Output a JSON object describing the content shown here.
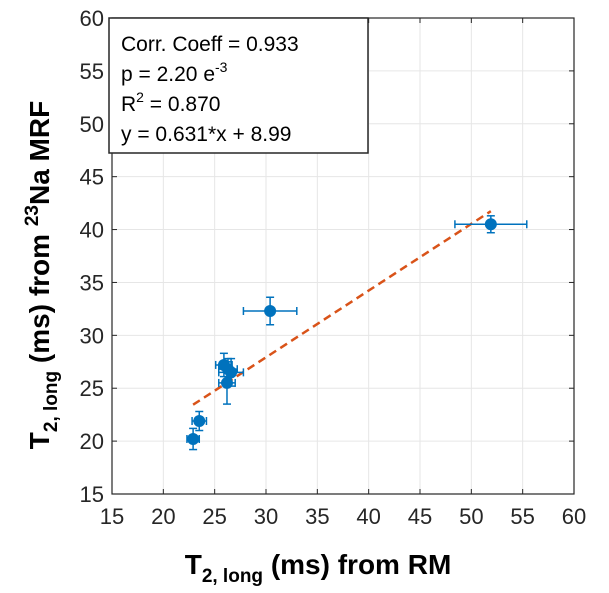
{
  "chart_data": {
    "type": "scatter",
    "xlabel": {
      "main": "T",
      "sub": "2, long",
      "rest": " (ms) from RM"
    },
    "ylabel": {
      "main": "T",
      "sub": "2, long",
      "rest1": " (ms) from ",
      "sup": "23",
      "rest2": "Na MRF"
    },
    "xlim": [
      15,
      60
    ],
    "ylim": [
      15,
      60
    ],
    "xticks": [
      "15",
      "20",
      "25",
      "30",
      "35",
      "40",
      "45",
      "50",
      "55",
      "60"
    ],
    "yticks": [
      "15",
      "20",
      "25",
      "30",
      "35",
      "40",
      "45",
      "50",
      "55",
      "60"
    ],
    "grid": true,
    "stats": {
      "corr": "Corr. Coeff = 0.933",
      "p_main": "p = 2.20 e",
      "p_exp": "-3",
      "r2_main": "R",
      "r2_exp": "2",
      "r2_rest": " = 0.870",
      "fit": "y = 0.631*x + 8.99"
    },
    "points": [
      {
        "x": 22.9,
        "y": 20.2,
        "xerr": 0.6,
        "yerr": 1.0
      },
      {
        "x": 23.5,
        "y": 21.9,
        "xerr": 0.7,
        "yerr": 0.9
      },
      {
        "x": 25.9,
        "y": 27.2,
        "xerr": 0.8,
        "yerr": 1.1
      },
      {
        "x": 26.2,
        "y": 25.5,
        "xerr": 0.8,
        "yerr": 2.0
      },
      {
        "x": 26.3,
        "y": 26.8,
        "xerr": 0.9,
        "yerr": 1.0
      },
      {
        "x": 26.6,
        "y": 26.5,
        "xerr": 1.2,
        "yerr": 1.3
      },
      {
        "x": 30.4,
        "y": 32.3,
        "xerr": 2.6,
        "yerr": 1.3
      },
      {
        "x": 51.9,
        "y": 40.5,
        "xerr": 3.5,
        "yerr": 0.8
      }
    ],
    "fit_line": {
      "slope": 0.631,
      "intercept": 8.99,
      "x_range": [
        22.9,
        51.9
      ]
    },
    "colors": {
      "points": "#0072BD",
      "fit": "#D95319",
      "grid": "#e6e6e6",
      "axis": "#262626"
    }
  }
}
